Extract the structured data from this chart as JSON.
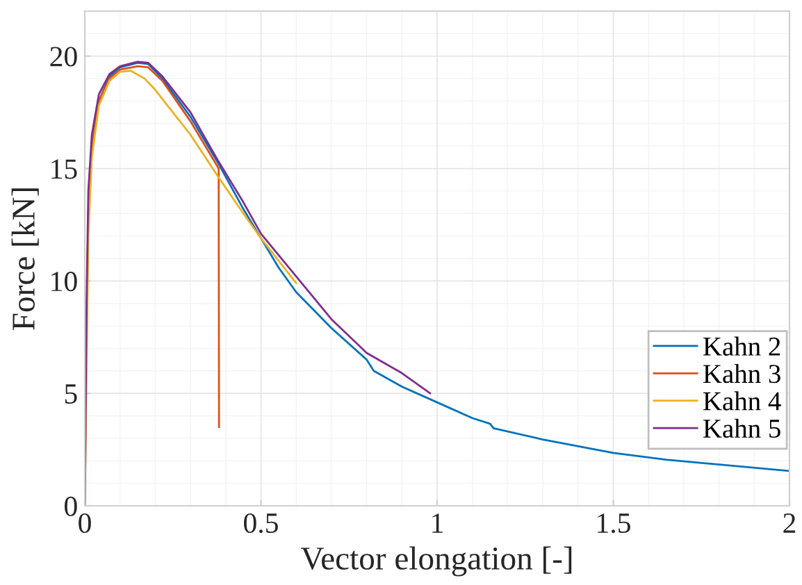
{
  "chart_data": {
    "type": "line",
    "xlabel": "Vector elongation [-]",
    "ylabel": "Force [kN]",
    "xlim": [
      0,
      2
    ],
    "xticks": [
      0,
      0.5,
      1,
      1.5,
      2
    ],
    "ylim": [
      0,
      22
    ],
    "yticks": [
      0,
      5,
      10,
      15,
      20
    ],
    "grid": true,
    "legend": "bottom right",
    "marker": "none",
    "line_style": "solid",
    "series": [
      {
        "name": "Kahn 2",
        "color": "#0072bd",
        "x": [
          0.02,
          0.04,
          0.07,
          0.1,
          0.15,
          0.18,
          0.22,
          0.3,
          0.38,
          0.45,
          0.5,
          0.55,
          0.6,
          0.7,
          0.8,
          0.82,
          0.9,
          1.0,
          1.1,
          1.15,
          1.16,
          1.3,
          1.5,
          1.65,
          2.0
        ],
        "values": [
          16,
          18,
          19.1,
          19.5,
          19.7,
          19.65,
          19.0,
          17.3,
          15.2,
          13.2,
          11.9,
          10.6,
          9.5,
          7.9,
          6.5,
          6.0,
          5.3,
          4.6,
          3.9,
          3.65,
          3.45,
          2.95,
          2.35,
          2.05,
          1.55
        ]
      },
      {
        "name": "Kahn 3",
        "color": "#d95319",
        "x": [
          0,
          0.005,
          0.01,
          0.02,
          0.04,
          0.07,
          0.1,
          0.15,
          0.18,
          0.22,
          0.3,
          0.38,
          0.381
        ],
        "values": [
          0,
          8,
          13,
          16,
          18,
          19.0,
          19.4,
          19.55,
          19.5,
          18.9,
          17.1,
          15.0,
          3.5
        ]
      },
      {
        "name": "Kahn 4",
        "color": "#edb120",
        "x": [
          0,
          0.01,
          0.02,
          0.04,
          0.07,
          0.1,
          0.13,
          0.17,
          0.2,
          0.3,
          0.38,
          0.45,
          0.5,
          0.55,
          0.6
        ],
        "values": [
          0,
          12,
          15.5,
          17.8,
          18.9,
          19.3,
          19.35,
          19.0,
          18.5,
          16.5,
          14.6,
          13.0,
          11.9,
          10.9,
          9.9
        ]
      },
      {
        "name": "Kahn 5",
        "color": "#7e2f8e",
        "x": [
          0,
          0.005,
          0.01,
          0.02,
          0.04,
          0.07,
          0.1,
          0.15,
          0.18,
          0.22,
          0.3,
          0.38,
          0.45,
          0.5,
          0.6,
          0.7,
          0.8,
          0.9,
          0.98
        ],
        "values": [
          0,
          9,
          14,
          16.5,
          18.3,
          19.2,
          19.55,
          19.75,
          19.7,
          19.1,
          17.5,
          15.3,
          13.5,
          12.1,
          10.2,
          8.3,
          6.8,
          5.9,
          5.0
        ]
      }
    ]
  }
}
